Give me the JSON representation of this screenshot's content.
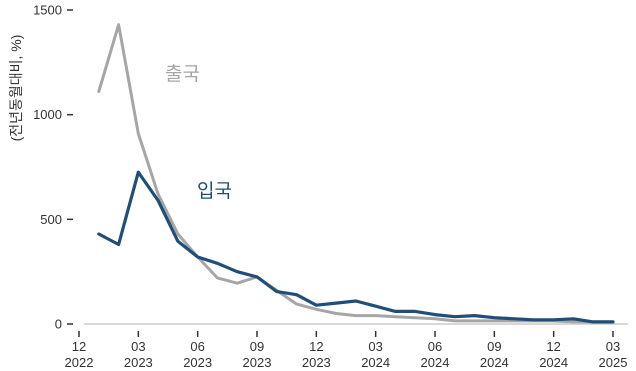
{
  "chart_data": {
    "type": "line",
    "ylabel": "(전년동월대비, %)",
    "ylim": [
      0,
      1500
    ],
    "yticks": [
      0,
      500,
      1000,
      1500
    ],
    "xlim": [
      "2022-12",
      "2025-03"
    ],
    "xticks": [
      {
        "month": "12",
        "year": "2022",
        "date": "2022-12"
      },
      {
        "month": "03",
        "year": "2023",
        "date": "2023-03"
      },
      {
        "month": "06",
        "year": "2023",
        "date": "2023-06"
      },
      {
        "month": "09",
        "year": "2023",
        "date": "2023-09"
      },
      {
        "month": "12",
        "year": "2023",
        "date": "2023-12"
      },
      {
        "month": "03",
        "year": "2024",
        "date": "2024-03"
      },
      {
        "month": "06",
        "year": "2024",
        "date": "2024-06"
      },
      {
        "month": "09",
        "year": "2024",
        "date": "2024-09"
      },
      {
        "month": "12",
        "year": "2024",
        "date": "2024-12"
      },
      {
        "month": "03",
        "year": "2025",
        "date": "2025-03"
      }
    ],
    "grid": false,
    "x": [
      "2023-01",
      "2023-02",
      "2023-03",
      "2023-04",
      "2023-05",
      "2023-06",
      "2023-07",
      "2023-08",
      "2023-09",
      "2023-10",
      "2023-11",
      "2023-12",
      "2024-01",
      "2024-02",
      "2024-03",
      "2024-04",
      "2024-05",
      "2024-06",
      "2024-07",
      "2024-08",
      "2024-09",
      "2024-10",
      "2024-11",
      "2024-12",
      "2025-01",
      "2025-02",
      "2025-03"
    ],
    "series": [
      {
        "name": "출국",
        "color": "#a6a6a6",
        "values": [
          1110,
          1430,
          910,
          620,
          430,
          320,
          220,
          195,
          225,
          160,
          95,
          70,
          50,
          40,
          40,
          35,
          30,
          25,
          15,
          15,
          15,
          15,
          15,
          15,
          10,
          10,
          10
        ]
      },
      {
        "name": "입국",
        "color": "#1f4e79",
        "values": [
          430,
          380,
          725,
          590,
          395,
          320,
          290,
          250,
          225,
          155,
          140,
          90,
          100,
          110,
          85,
          60,
          60,
          45,
          35,
          40,
          30,
          25,
          20,
          20,
          25,
          10,
          10
        ]
      }
    ]
  }
}
